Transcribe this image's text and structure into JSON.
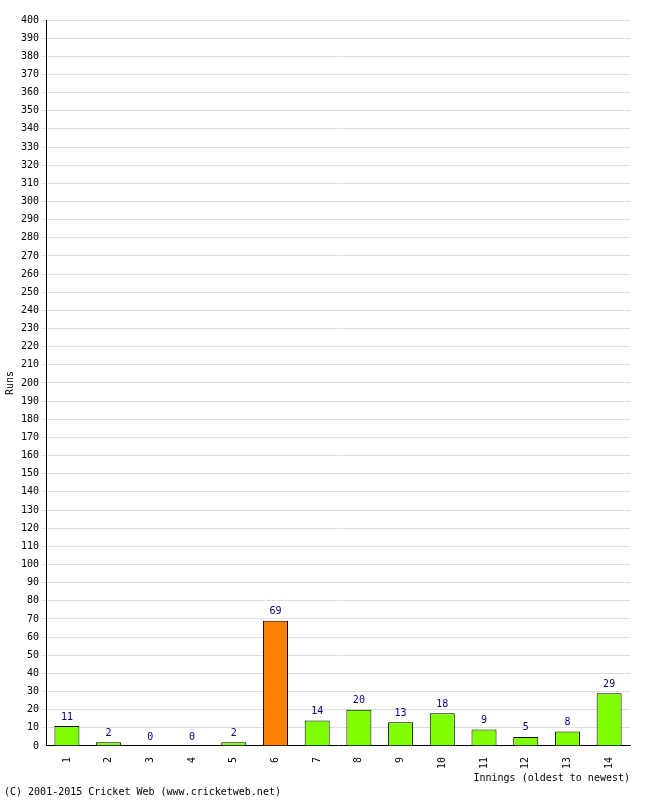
{
  "chart_data": {
    "type": "bar",
    "categories": [
      "1",
      "2",
      "3",
      "4",
      "5",
      "6",
      "7",
      "8",
      "9",
      "10",
      "11",
      "12",
      "13",
      "14"
    ],
    "values": [
      11,
      2,
      0,
      0,
      2,
      69,
      14,
      20,
      13,
      18,
      9,
      5,
      8,
      29
    ],
    "colors": [
      "#80ff00",
      "#80ff00",
      "#80ff00",
      "#80ff00",
      "#80ff00",
      "#ff8000",
      "#80ff00",
      "#80ff00",
      "#80ff00",
      "#80ff00",
      "#80ff00",
      "#80ff00",
      "#80ff00",
      "#80ff00"
    ],
    "y_label": "Runs",
    "x_label": "Innings (oldest to newest)",
    "footer": "(C) 2001-2015 Cricket Web (www.cricketweb.net)",
    "ylim": [
      0,
      400
    ],
    "yticks": [
      0,
      10,
      20,
      30,
      40,
      50,
      60,
      70,
      80,
      90,
      100,
      110,
      120,
      130,
      140,
      150,
      160,
      170,
      180,
      190,
      200,
      210,
      220,
      230,
      240,
      250,
      260,
      270,
      280,
      290,
      300,
      310,
      320,
      330,
      340,
      350,
      360,
      370,
      380,
      390,
      400
    ],
    "grid": true,
    "data_labels": true
  }
}
